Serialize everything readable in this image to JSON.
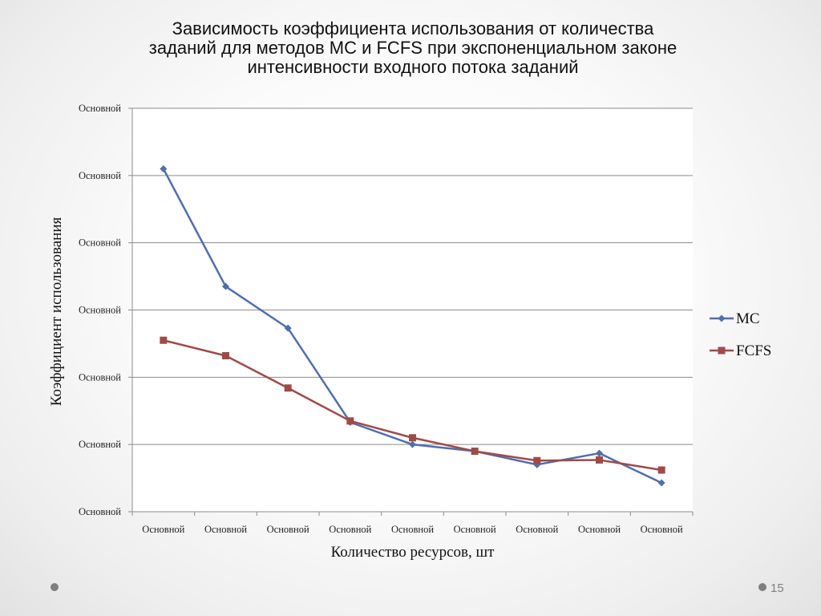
{
  "slide": {
    "title_lines": [
      "Зависимость  коэффициента использования от количества",
      "заданий для методов МС и FCFS при экспоненциальном законе",
      "интенсивности входного потока заданий"
    ],
    "page_number": "15"
  },
  "chart_data": {
    "type": "line",
    "title": "",
    "xlabel": "Количество ресурсов, шт",
    "ylabel": "Коэффициент использования",
    "categories": [
      "Основной",
      "Основной",
      "Основной",
      "Основной",
      "Основной",
      "Основной",
      "Основной",
      "Основной",
      "Основной"
    ],
    "y_tick_labels": [
      "Основной",
      "Основной",
      "Основной",
      "Основной",
      "Основной",
      "Основной",
      "Основной"
    ],
    "ylim": [
      0,
      6
    ],
    "grid": true,
    "legend_position": "right",
    "series": [
      {
        "name": "МС",
        "color": "#4f6fad",
        "marker": "diamond",
        "values": [
          5.1,
          3.35,
          2.73,
          1.33,
          1.0,
          0.9,
          0.7,
          0.87,
          0.43
        ]
      },
      {
        "name": "FCFS",
        "color": "#a04a48",
        "marker": "square",
        "values": [
          2.55,
          2.32,
          1.84,
          1.35,
          1.1,
          0.9,
          0.76,
          0.77,
          0.62
        ]
      }
    ]
  }
}
